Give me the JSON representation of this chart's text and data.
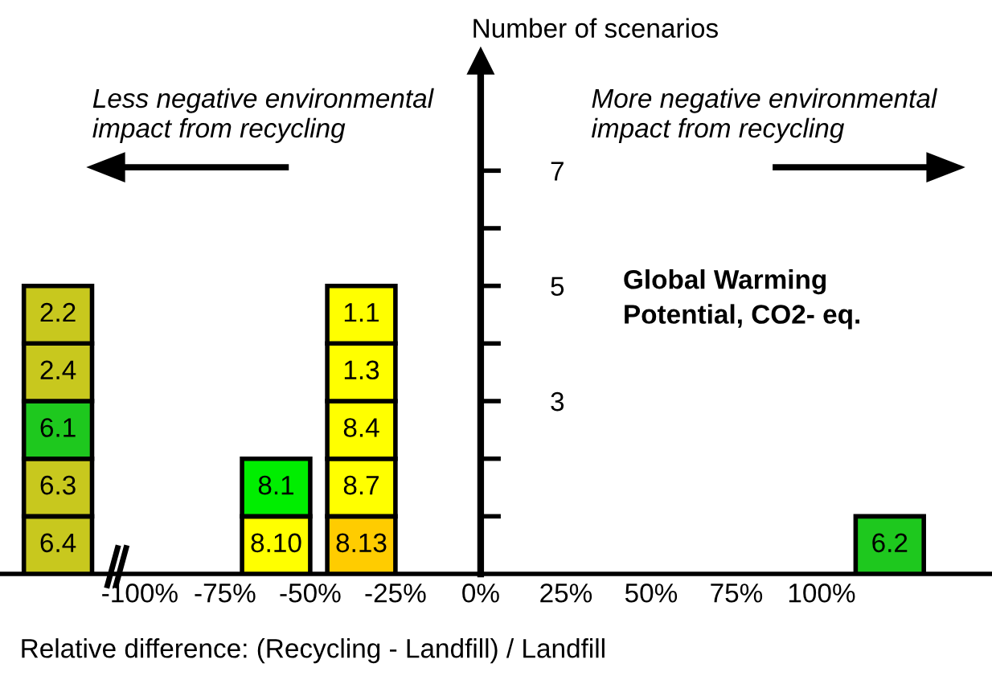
{
  "chart_data": {
    "type": "bar",
    "stacked": true,
    "ylabel": "Number of scenarios",
    "xlabel": "Relative difference: (Recycling - Landfill) / Landfill",
    "annotations": [
      "Less negative environmental\nimpact from recycling",
      "More negative environmental\nimpact from recycling",
      "Global Warming\nPotential, CO2- eq.",
      "6.4",
      "8.10",
      "8.13",
      "6.2",
      "6.3",
      "8.1",
      "8.7",
      "6.1",
      "8.4",
      "2.4",
      "1.3",
      "2.2",
      "1.1"
    ],
    "x": [
      -124,
      -60,
      -35,
      120
    ],
    "series": [
      {
        "values": [
          1,
          1,
          1,
          1
        ],
        "colors": [
          "#c8c81e",
          "#ffff00",
          "#ffcc00",
          "#1ec81e"
        ]
      },
      {
        "values": [
          1,
          1,
          1,
          null
        ],
        "colors": [
          "#c8c81e",
          "#00ee00",
          "#ffff00",
          null
        ]
      },
      {
        "values": [
          1,
          null,
          1,
          null
        ],
        "colors": [
          "#1ec81e",
          null,
          "#ffff00",
          null
        ]
      },
      {
        "values": [
          1,
          null,
          1,
          null
        ],
        "colors": [
          "#c8c81e",
          null,
          "#ffff00",
          null
        ]
      },
      {
        "values": [
          1,
          null,
          1,
          null
        ],
        "colors": [
          "#c8c81e",
          null,
          "#ffff00",
          null
        ]
      }
    ],
    "xlim": [
      -141,
      150
    ],
    "ylim": [
      0,
      8.9
    ],
    "xticks": [
      {
        "value": -100,
        "label": "-100%"
      },
      {
        "value": -75,
        "label": "-75%"
      },
      {
        "value": -50,
        "label": "-50%"
      },
      {
        "value": -25,
        "label": "-25%"
      },
      {
        "value": 0,
        "label": "0%"
      },
      {
        "value": 25,
        "label": "25%"
      },
      {
        "value": 50,
        "label": "50%"
      },
      {
        "value": 75,
        "label": "75%"
      },
      {
        "value": 100,
        "label": "100%"
      }
    ],
    "yticks": [
      {
        "value": 1,
        "label": null
      },
      {
        "value": 2,
        "label": null
      },
      3,
      {
        "value": 4,
        "label": null
      },
      5,
      {
        "value": 6,
        "label": null
      },
      7
    ]
  }
}
